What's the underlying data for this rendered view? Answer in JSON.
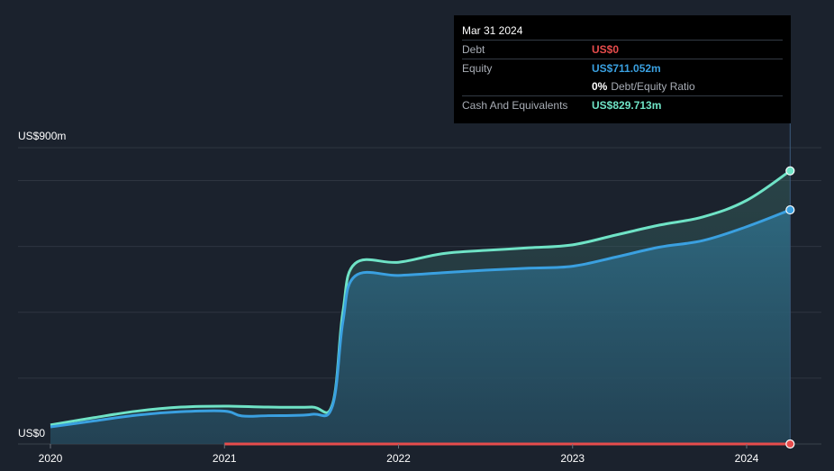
{
  "colors": {
    "background": "#1b222d",
    "debt": "#e74c4c",
    "equity": "#3aa0e0",
    "cash": "#6fe3c6",
    "grid": "#2e3540"
  },
  "tooltip": {
    "date": "Mar 31 2024",
    "debt_label": "Debt",
    "debt_value": "US$0",
    "equity_label": "Equity",
    "equity_value": "US$711.052m",
    "ratio_value": "0%",
    "ratio_label": "Debt/Equity Ratio",
    "cash_label": "Cash And Equivalents",
    "cash_value": "US$829.713m"
  },
  "chart_data": {
    "type": "area",
    "y_axis_labels": [
      "US$900m",
      "US$0"
    ],
    "x_tick_labels": [
      "2020",
      "2021",
      "2022",
      "2023",
      "2024"
    ],
    "ylim": [
      0,
      900
    ],
    "xlim": [
      2020.0,
      2024.5
    ],
    "grid": true,
    "series": [
      {
        "key": "cash",
        "x": [
          2020.0,
          2020.25,
          2020.5,
          2020.75,
          2021.0,
          2021.25,
          2021.5,
          2021.62,
          2021.68,
          2021.75,
          2022.0,
          2022.25,
          2022.5,
          2022.75,
          2023.0,
          2023.25,
          2023.5,
          2023.75,
          2024.0,
          2024.25
        ],
        "values": [
          58,
          80,
          100,
          112,
          115,
          112,
          112,
          120,
          400,
          548,
          552,
          578,
          588,
          596,
          605,
          635,
          665,
          690,
          740,
          829.713
        ]
      },
      {
        "key": "equity",
        "x": [
          2020.0,
          2020.25,
          2020.5,
          2020.75,
          2021.0,
          2021.1,
          2021.25,
          2021.5,
          2021.62,
          2021.68,
          2021.75,
          2022.0,
          2022.25,
          2022.5,
          2022.75,
          2023.0,
          2023.25,
          2023.5,
          2023.75,
          2024.0,
          2024.25
        ],
        "values": [
          52,
          70,
          88,
          98,
          100,
          85,
          86,
          90,
          115,
          370,
          510,
          512,
          520,
          528,
          534,
          540,
          568,
          598,
          618,
          660,
          711.052
        ]
      },
      {
        "key": "debt",
        "x": [
          2021.0,
          2024.25
        ],
        "values": [
          0,
          0
        ]
      }
    ]
  }
}
